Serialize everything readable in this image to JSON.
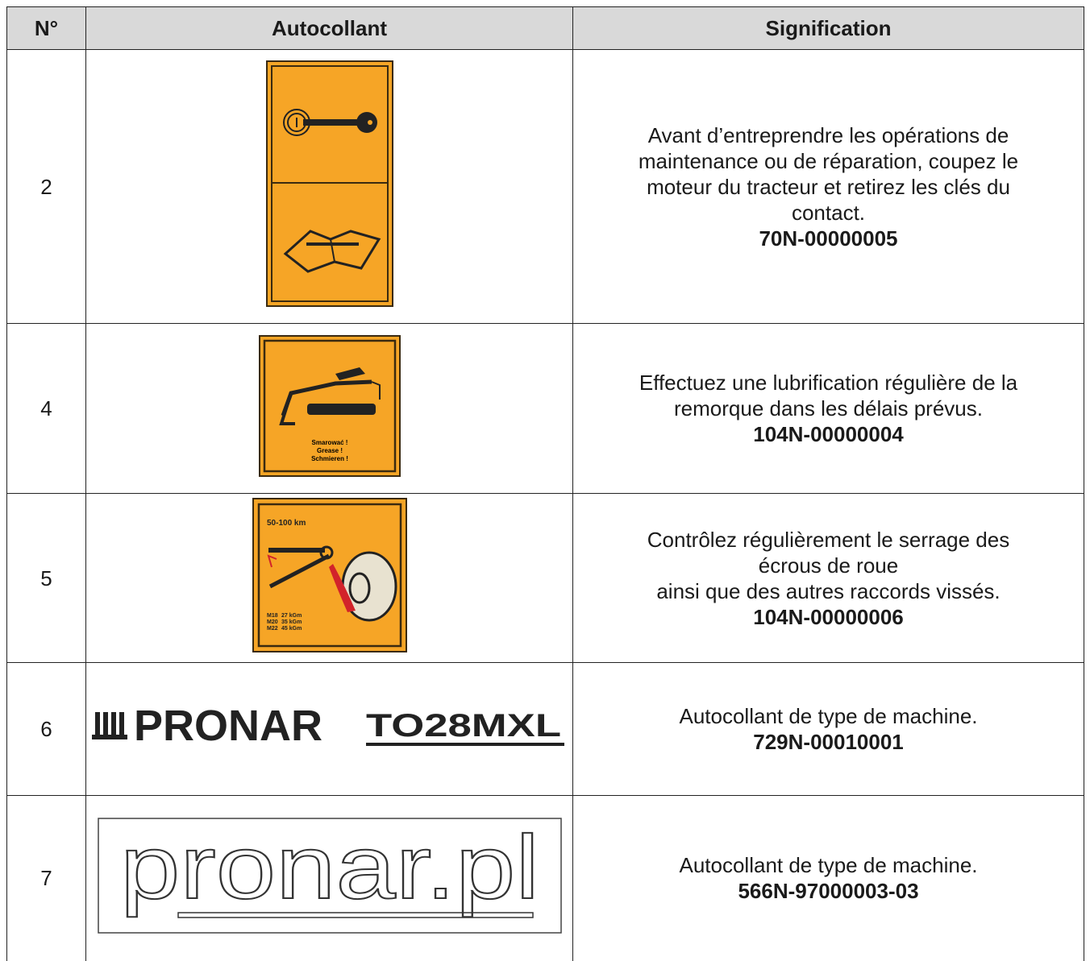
{
  "table": {
    "header": [
      "N°",
      "Autocollant",
      "Signification"
    ],
    "rows": [
      {
        "number": "2",
        "meaning": [
          "Avant d’entreprendre les opérations de",
          "maintenance ou de réparation, coupez le",
          "moteur du tracteur et retirez les clés du",
          "contact."
        ],
        "code": "70N-00000005"
      },
      {
        "number": "4",
        "meaning": [
          "Effectuez une lubrification régulière de la",
          "remorque dans les délais prévus."
        ],
        "code": "104N-00000004"
      },
      {
        "number": "5",
        "meaning": [
          "Contrôlez régulièrement le serrage des",
          "écrous de roue",
          "ainsi que des autres raccords vissés."
        ],
        "code": "104N-00000006"
      },
      {
        "number": "6",
        "meaning": [
          "Autocollant de type de machine."
        ],
        "code": "729N-00010001"
      },
      {
        "number": "7",
        "meaning": [
          "Autocollant de type de machine."
        ],
        "code": "566N-97000003-03"
      }
    ]
  },
  "stickers": {
    "grease": [
      "Smarować !",
      "Grease !",
      "Schmieren !"
    ],
    "torque": {
      "title": "50-100 km",
      "specs": [
        [
          "M18",
          "27 kGm"
        ],
        [
          "M20",
          "35 kGm"
        ],
        [
          "M22",
          "45 kGm"
        ]
      ]
    },
    "logo": {
      "brand": "PRONAR",
      "model": "TO28MXL"
    },
    "website": "pronar.pl"
  }
}
